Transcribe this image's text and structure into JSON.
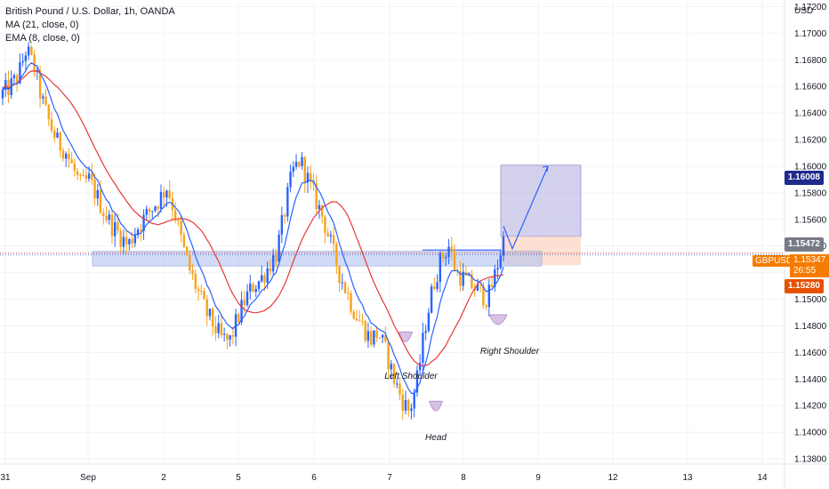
{
  "legend": {
    "title": "British Pound / U.S. Dollar, 1h, OANDA",
    "ma": "MA (21, close, 0)",
    "ema": "EMA (8, close, 0)"
  },
  "currency_label": "USD",
  "price_tags": {
    "target": "1.16008",
    "entry": "1.15472",
    "current_symbol": "GBPUSD",
    "current_price": "1.15347",
    "countdown": "26:55",
    "stop": "1.15280"
  },
  "annotations": {
    "left_shoulder": "Left Shoulder",
    "head": "Head",
    "right_shoulder": "Right Shoulder"
  },
  "colors": {
    "up_candle": "#2962ff",
    "down_candle": "#f7a21b",
    "ma_line": "#e53935",
    "ema_line": "#2962ff",
    "target_zone": "#b7b3e0",
    "stop_zone": "#fbd3bf",
    "neckline_zone": "#b3c3ef",
    "target_tag": "#1f2a8c",
    "entry_tag": "#787b86",
    "current_tag": "#f57c00",
    "stop_tag": "#e65100"
  },
  "chart_data": {
    "type": "candlestick",
    "title": "British Pound / U.S. Dollar, 1h, OANDA",
    "yaxis_unit": "USD",
    "ylim": [
      1.1376,
      1.1725
    ],
    "y_ticks": [
      "1.17200",
      "1.17000",
      "1.16800",
      "1.16600",
      "1.16400",
      "1.16200",
      "1.16000",
      "1.15800",
      "1.15600",
      "1.15400",
      "1.15200",
      "1.15000",
      "1.14800",
      "1.14600",
      "1.14400",
      "1.14200",
      "1.14000",
      "1.13800"
    ],
    "x_ticks": [
      "31",
      "Sep",
      "2",
      "5",
      "6",
      "7",
      "8",
      "9",
      "12",
      "13",
      "14"
    ],
    "close_path": [
      1.1655,
      1.166,
      1.1668,
      1.1688,
      1.1675,
      1.165,
      1.1632,
      1.1618,
      1.1612,
      1.1598,
      1.1585,
      1.159,
      1.1578,
      1.1565,
      1.1555,
      1.1548,
      1.154,
      1.1552,
      1.156,
      1.1568,
      1.1575,
      1.1585,
      1.1565,
      1.154,
      1.152,
      1.1505,
      1.149,
      1.148,
      1.147,
      1.1468,
      1.1485,
      1.15,
      1.151,
      1.1515,
      1.1525,
      1.1535,
      1.1565,
      1.1595,
      1.1605,
      1.159,
      1.1575,
      1.156,
      1.154,
      1.152,
      1.1505,
      1.149,
      1.148,
      1.147,
      1.1475,
      1.146,
      1.144,
      1.1425,
      1.1415,
      1.144,
      1.148,
      1.151,
      1.153,
      1.154,
      1.152,
      1.1515,
      1.151,
      1.1505,
      1.15,
      1.152,
      1.1545
    ],
    "indicators": [
      {
        "name": "MA (21, close, 0)",
        "color": "#e53935"
      },
      {
        "name": "EMA (8, close, 0)",
        "color": "#2962ff"
      }
    ],
    "levels": {
      "neckline_zone": [
        1.1525,
        1.1531
      ],
      "target_zone_top": 1.16008,
      "entry": 1.15472,
      "current": 1.15347,
      "stop": 1.1528
    },
    "grid": true
  }
}
